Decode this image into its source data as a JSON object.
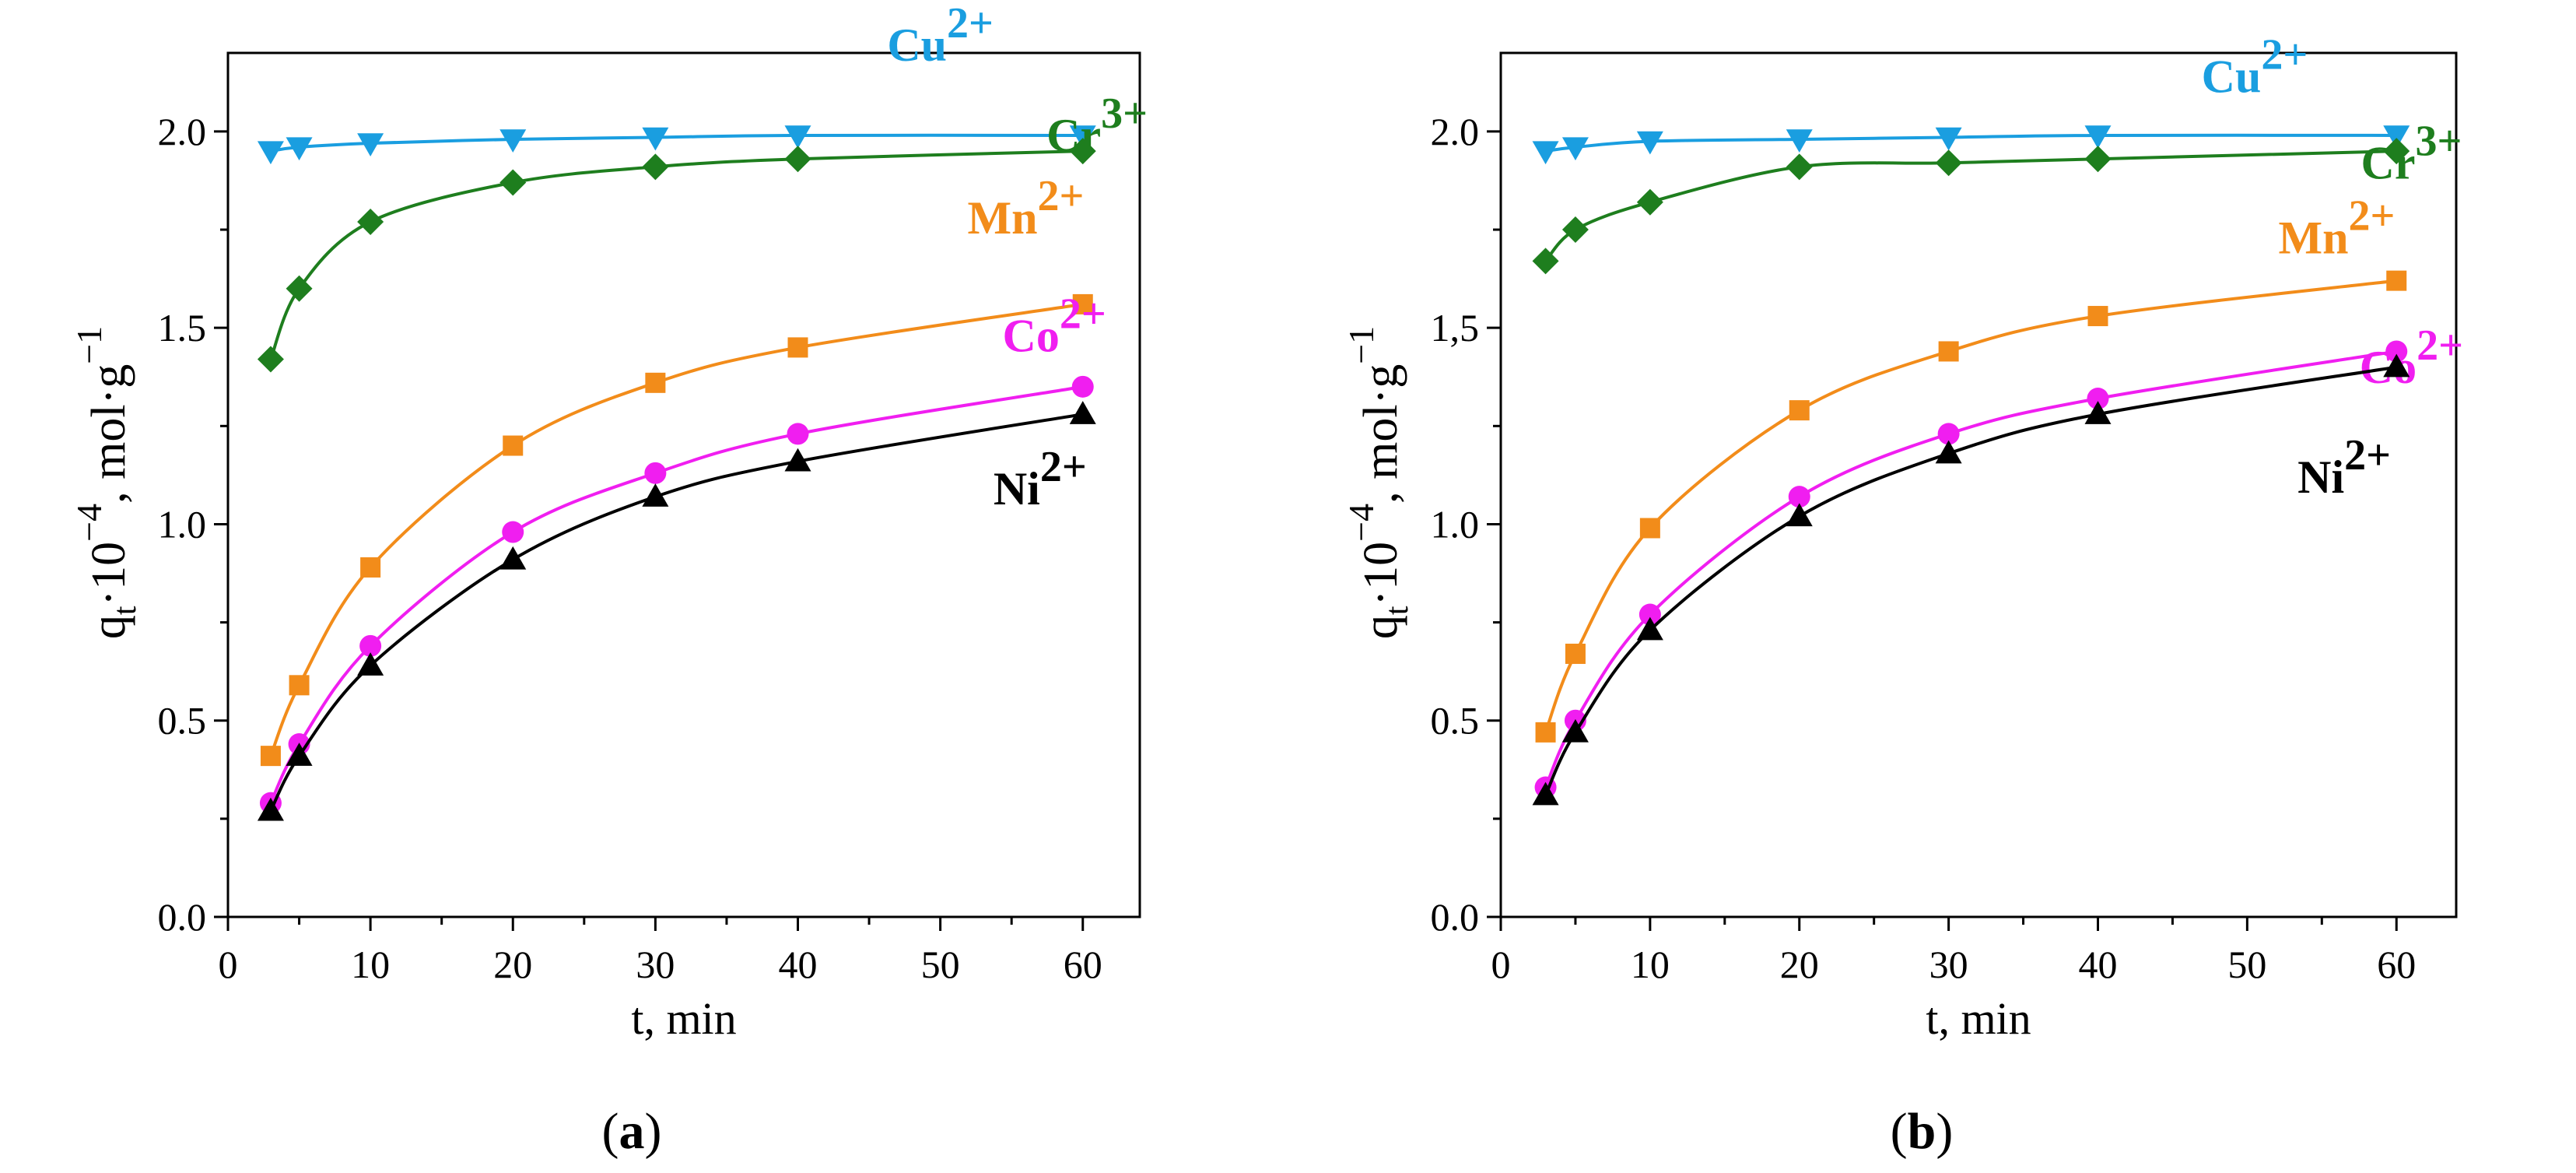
{
  "panels": [
    {
      "caption_open": "(",
      "caption_letter": "a",
      "caption_close": ")"
    },
    {
      "caption_open": "(",
      "caption_letter": "b",
      "caption_close": ")"
    }
  ],
  "chart_data": [
    {
      "type": "line",
      "panel": "a",
      "xlabel": "t, min",
      "ylabel": {
        "base": "q",
        "base_sub": "t",
        "middle": "·10",
        "middle_sup": "−4",
        "unit": ", mol·g",
        "unit_sup": "−1"
      },
      "xlim": [
        0,
        64
      ],
      "ylim": [
        0.0,
        2.2
      ],
      "xticks": [
        0,
        10,
        20,
        30,
        40,
        50,
        60
      ],
      "xtick_labels": [
        "0",
        "10",
        "20",
        "30",
        "40",
        "50",
        "60"
      ],
      "yticks": [
        0.0,
        0.5,
        1.0,
        1.5,
        2.0
      ],
      "ytick_labels": [
        "0.0",
        "0.5",
        "1.0",
        "1.5",
        "2.0"
      ],
      "x": [
        3,
        5,
        10,
        20,
        30,
        40,
        60
      ],
      "series": [
        {
          "name": "Cu",
          "charge": "2+",
          "color": "#1a9ee0",
          "marker": "triangle-down",
          "values": [
            1.95,
            1.96,
            1.97,
            1.98,
            1.985,
            1.99,
            1.99
          ],
          "label_x": 50,
          "label_y": 2.18
        },
        {
          "name": "Cr",
          "charge": "3+",
          "color": "#1e7e1e",
          "marker": "diamond",
          "values": [
            1.42,
            1.6,
            1.77,
            1.87,
            1.91,
            1.93,
            1.95
          ],
          "label_x": 61,
          "label_y": 1.95
        },
        {
          "name": "Mn",
          "charge": "2+",
          "color": "#f28c1a",
          "marker": "square",
          "values": [
            0.41,
            0.59,
            0.89,
            1.2,
            1.36,
            1.45,
            1.56
          ],
          "label_x": 56,
          "label_y": 1.74
        },
        {
          "name": "Co",
          "charge": "2+",
          "color": "#f01ef0",
          "marker": "circle",
          "values": [
            0.29,
            0.44,
            0.69,
            0.98,
            1.13,
            1.23,
            1.35
          ],
          "label_x": 58,
          "label_y": 1.44
        },
        {
          "name": "Ni",
          "charge": "2+",
          "color": "#000000",
          "marker": "triangle-up",
          "values": [
            0.27,
            0.41,
            0.64,
            0.91,
            1.07,
            1.16,
            1.28
          ],
          "label_x": 57,
          "label_y": 1.05
        }
      ]
    },
    {
      "type": "line",
      "panel": "b",
      "xlabel": "t, min",
      "ylabel": {
        "base": "q",
        "base_sub": "t",
        "middle": "·10",
        "middle_sup": "−4",
        "unit": ", mol·g",
        "unit_sup": "−1"
      },
      "xlim": [
        0,
        64
      ],
      "ylim": [
        0.0,
        2.2
      ],
      "xticks": [
        0,
        10,
        20,
        30,
        40,
        50,
        60
      ],
      "xtick_labels": [
        "0",
        "10",
        "20",
        "30",
        "40",
        "50",
        "60"
      ],
      "yticks": [
        0.0,
        0.5,
        1.0,
        1.5,
        2.0
      ],
      "ytick_labels": [
        "0.0",
        "0.5",
        "1.0",
        "1,5",
        "2.0"
      ],
      "x": [
        3,
        5,
        10,
        20,
        30,
        40,
        60
      ],
      "series": [
        {
          "name": "Cu",
          "charge": "2+",
          "color": "#1a9ee0",
          "marker": "triangle-down",
          "values": [
            1.95,
            1.96,
            1.975,
            1.98,
            1.985,
            1.99,
            1.99
          ],
          "label_x": 50.5,
          "label_y": 2.1
        },
        {
          "name": "Cr",
          "charge": "3+",
          "color": "#1e7e1e",
          "marker": "diamond",
          "values": [
            1.67,
            1.75,
            1.82,
            1.91,
            1.92,
            1.93,
            1.95
          ],
          "label_x": 61,
          "label_y": 1.88
        },
        {
          "name": "Mn",
          "charge": "2+",
          "color": "#f28c1a",
          "marker": "square",
          "values": [
            0.47,
            0.67,
            0.99,
            1.29,
            1.44,
            1.53,
            1.62
          ],
          "label_x": 56,
          "label_y": 1.69
        },
        {
          "name": "Co",
          "charge": "2+",
          "color": "#f01ef0",
          "marker": "circle",
          "values": [
            0.33,
            0.5,
            0.77,
            1.07,
            1.23,
            1.32,
            1.44
          ],
          "label_x": 61,
          "label_y": 1.36
        },
        {
          "name": "Ni",
          "charge": "2+",
          "color": "#000000",
          "marker": "triangle-up",
          "values": [
            0.31,
            0.47,
            0.73,
            1.02,
            1.18,
            1.28,
            1.4
          ],
          "label_x": 56.5,
          "label_y": 1.08
        }
      ]
    }
  ]
}
